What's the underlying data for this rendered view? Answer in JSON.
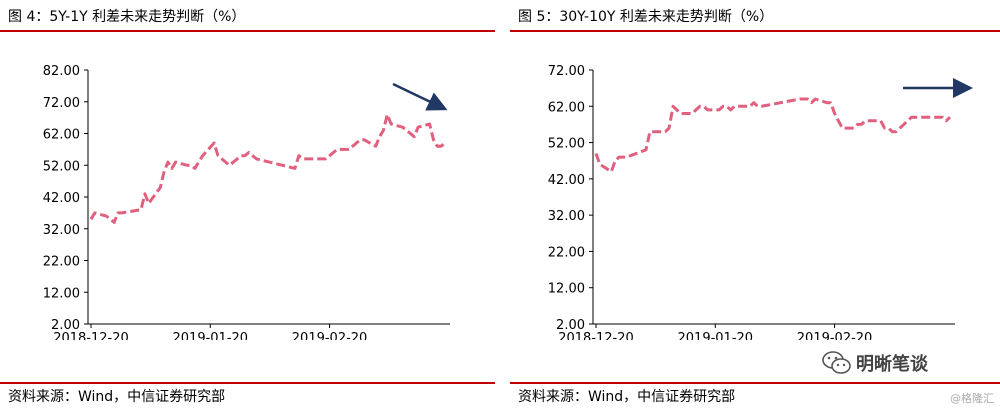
{
  "panels": [
    {
      "title": "图 4：5Y-1Y 利差未来走势判断（%）",
      "source": "资料来源：Wind，中信证券研究部"
    },
    {
      "title": "图 5：30Y-10Y 利差未来走势判断（%）",
      "source": "资料来源：Wind，中信证券研究部"
    }
  ],
  "watermark": {
    "brand": "明晰笔谈",
    "credit": "@格隆汇"
  },
  "chart_data": [
    {
      "type": "line",
      "title": "5Y-1Y 利差未来走势判断（%）",
      "ylim": [
        2,
        82
      ],
      "yticks": [
        "82.00",
        "72.00",
        "62.00",
        "52.00",
        "42.00",
        "32.00",
        "22.00",
        "12.00",
        "2.00"
      ],
      "xticks": [
        "2018-12-20",
        "2019-01-20",
        "2019-02-20"
      ],
      "x_dates": [
        "2018-12-20",
        "2018-12-21",
        "2018-12-24",
        "2018-12-25",
        "2018-12-26",
        "2018-12-27",
        "2018-12-28",
        "2019-01-02",
        "2019-01-03",
        "2019-01-04",
        "2019-01-07",
        "2019-01-08",
        "2019-01-09",
        "2019-01-10",
        "2019-01-11",
        "2019-01-14",
        "2019-01-15",
        "2019-01-16",
        "2019-01-17",
        "2019-01-18",
        "2019-01-21",
        "2019-01-22",
        "2019-01-23",
        "2019-01-24",
        "2019-01-25",
        "2019-01-28",
        "2019-01-29",
        "2019-01-30",
        "2019-01-31",
        "2019-02-01",
        "2019-02-11",
        "2019-02-12",
        "2019-02-13",
        "2019-02-14",
        "2019-02-15",
        "2019-02-18",
        "2019-02-19",
        "2019-02-20",
        "2019-02-21",
        "2019-02-22",
        "2019-02-25",
        "2019-02-26",
        "2019-02-27",
        "2019-02-28",
        "2019-03-01",
        "2019-03-04",
        "2019-03-05",
        "2019-03-06",
        "2019-03-07",
        "2019-03-08",
        "2019-03-11",
        "2019-03-12",
        "2019-03-13",
        "2019-03-14",
        "2019-03-15",
        "2019-03-18",
        "2019-03-19",
        "2019-03-20",
        "2019-03-21",
        "2019-03-22"
      ],
      "series": [
        {
          "color": "#e0607e",
          "dash": true,
          "values": [
            35,
            37,
            36,
            35,
            34,
            37,
            37,
            38,
            43,
            40,
            45,
            50,
            53,
            51,
            53,
            52,
            52,
            51,
            53,
            55,
            59,
            55,
            54,
            53,
            52,
            55,
            55,
            56,
            55,
            54,
            51,
            55,
            54,
            54,
            54,
            54,
            54,
            55,
            56,
            57,
            57,
            58,
            59,
            60,
            60,
            58,
            61,
            63,
            68,
            65,
            64,
            63,
            62,
            61,
            64,
            65,
            60,
            58,
            58,
            59
          ]
        }
      ],
      "annotation": {
        "type": "arrow",
        "direction": "down",
        "color": "#1f3864"
      }
    },
    {
      "type": "line",
      "title": "30Y-10Y 利差未来走势判断（%）",
      "ylim": [
        2,
        72
      ],
      "yticks": [
        "72.00",
        "62.00",
        "52.00",
        "42.00",
        "32.00",
        "22.00",
        "12.00",
        "2.00"
      ],
      "xticks": [
        "2018-12-20",
        "2019-01-20",
        "2019-02-20"
      ],
      "x_dates": [
        "2018-12-20",
        "2018-12-21",
        "2018-12-24",
        "2018-12-25",
        "2018-12-26",
        "2018-12-27",
        "2018-12-28",
        "2019-01-02",
        "2019-01-03",
        "2019-01-04",
        "2019-01-07",
        "2019-01-08",
        "2019-01-09",
        "2019-01-10",
        "2019-01-11",
        "2019-01-14",
        "2019-01-15",
        "2019-01-16",
        "2019-01-17",
        "2019-01-18",
        "2019-01-21",
        "2019-01-22",
        "2019-01-23",
        "2019-01-24",
        "2019-01-25",
        "2019-01-28",
        "2019-01-29",
        "2019-01-30",
        "2019-01-31",
        "2019-02-01",
        "2019-02-11",
        "2019-02-12",
        "2019-02-13",
        "2019-02-14",
        "2019-02-15",
        "2019-02-18",
        "2019-02-19",
        "2019-02-20",
        "2019-02-21",
        "2019-02-22",
        "2019-02-25",
        "2019-02-26",
        "2019-02-27",
        "2019-02-28",
        "2019-03-01",
        "2019-03-04",
        "2019-03-05",
        "2019-03-06",
        "2019-03-07",
        "2019-03-08",
        "2019-03-11",
        "2019-03-12",
        "2019-03-13",
        "2019-03-14",
        "2019-03-15",
        "2019-03-18",
        "2019-03-19",
        "2019-03-20",
        "2019-03-21",
        "2019-03-22"
      ],
      "series": [
        {
          "color": "#e0607e",
          "dash": true,
          "values": [
            49,
            46,
            44,
            47,
            48,
            48,
            48,
            50,
            55,
            55,
            55,
            56,
            62,
            61,
            60,
            60,
            61,
            62,
            62,
            61,
            61,
            62,
            62,
            61,
            62,
            62,
            62,
            63,
            62,
            62,
            64,
            64,
            64,
            63,
            64,
            63,
            63,
            60,
            58,
            56,
            56,
            57,
            57,
            58,
            58,
            58,
            56,
            56,
            55,
            55,
            58,
            59,
            59,
            59,
            59,
            59,
            59,
            59,
            58,
            59
          ]
        }
      ],
      "annotation": {
        "type": "arrow",
        "direction": "right",
        "color": "#1f3864"
      }
    }
  ]
}
